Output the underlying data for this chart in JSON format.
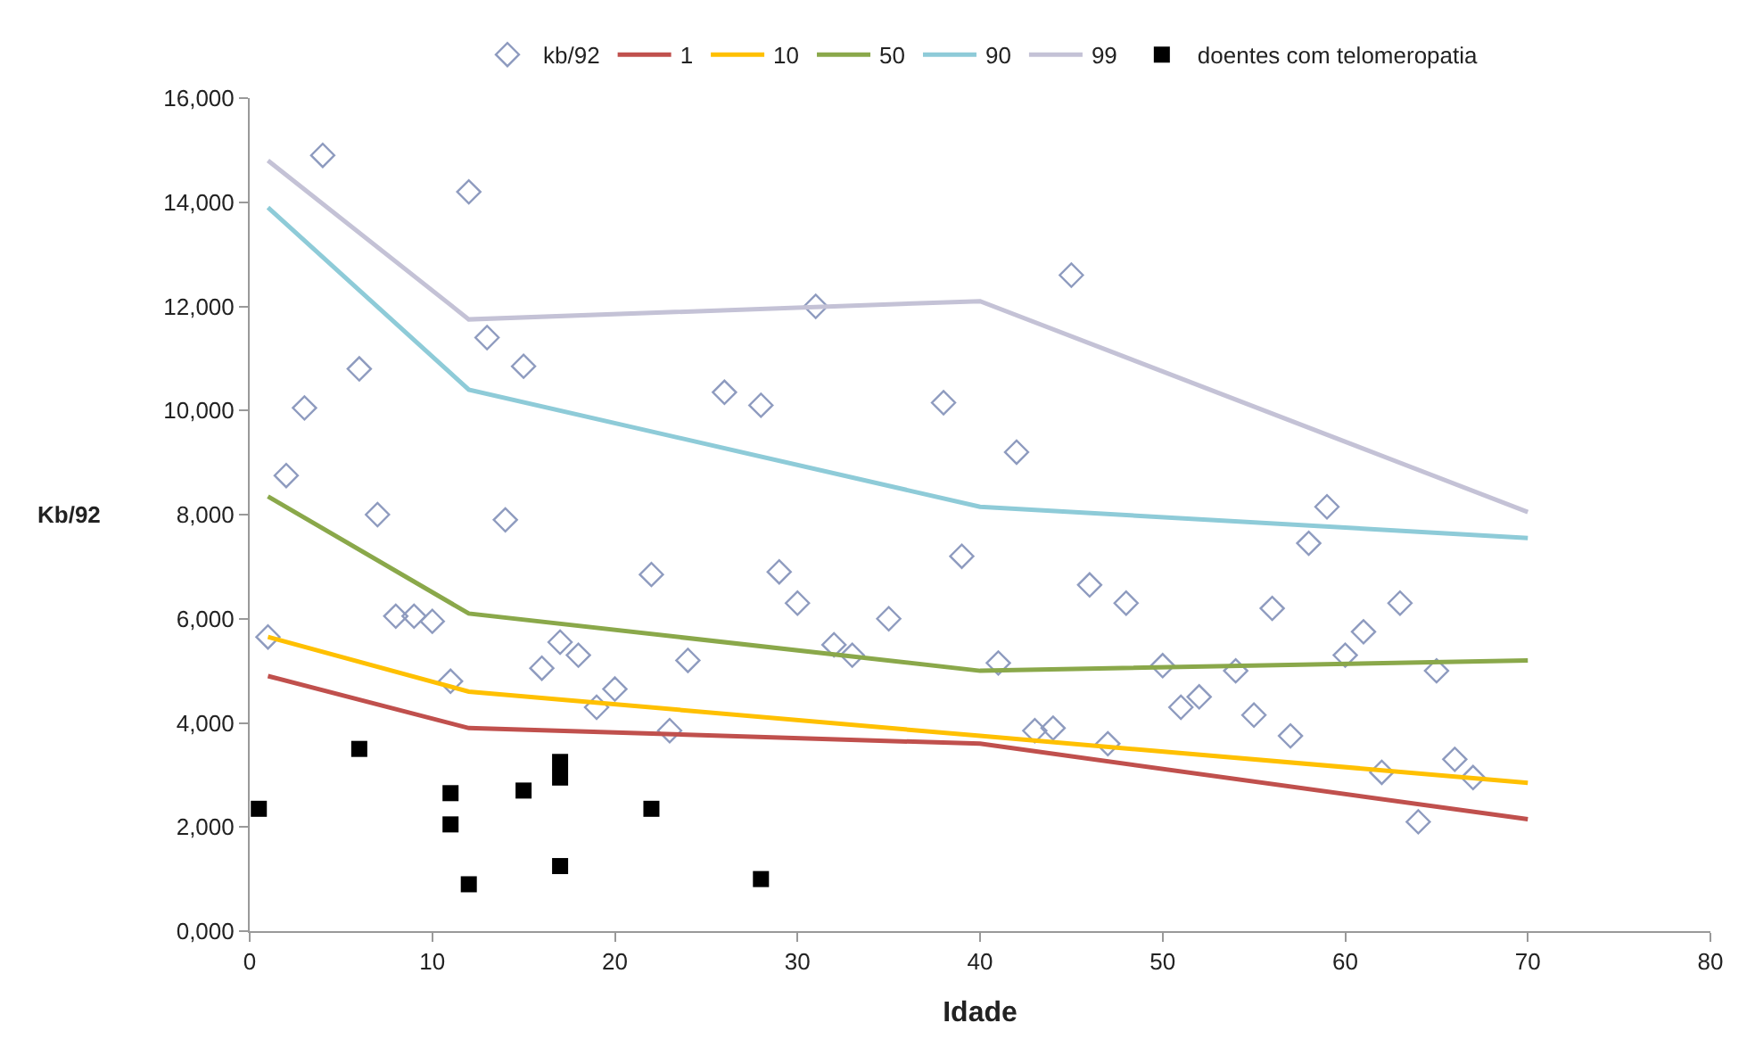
{
  "chart_data": {
    "type": "scatter",
    "xlabel": "Idade",
    "ylabel": "Kb/92",
    "xlim": [
      0,
      80
    ],
    "xticks": [
      0,
      10,
      20,
      30,
      40,
      50,
      60,
      70,
      80
    ],
    "ylim": [
      0,
      16000
    ],
    "yticks": [
      {
        "value": 0,
        "label": "0,000"
      },
      {
        "value": 2000,
        "label": "2,000"
      },
      {
        "value": 4000,
        "label": "4,000"
      },
      {
        "value": 6000,
        "label": "6,000"
      },
      {
        "value": 8000,
        "label": "8,000"
      },
      {
        "value": 10000,
        "label": "10,000"
      },
      {
        "value": 12000,
        "label": "12,000"
      },
      {
        "value": 14000,
        "label": "14,000"
      },
      {
        "value": 16000,
        "label": "16,000"
      }
    ],
    "legend": "top",
    "series": [
      {
        "name": "kb/92",
        "marker": "diamond",
        "color": "#8e9bbf",
        "x": [
          1,
          2,
          3,
          4,
          6,
          7,
          8,
          9,
          10,
          11,
          12,
          13,
          14,
          15,
          16,
          17,
          18,
          19,
          20,
          22,
          23,
          24,
          26,
          28,
          29,
          30,
          31,
          32,
          33,
          35,
          38,
          39,
          41,
          42,
          43,
          44,
          45,
          46,
          47,
          48,
          50,
          51,
          52,
          54,
          55,
          56,
          57,
          58,
          59,
          60,
          61,
          62,
          63,
          64,
          65,
          66,
          67
        ],
        "values": [
          5650,
          8750,
          10050,
          14900,
          10800,
          8000,
          6050,
          6050,
          5950,
          4800,
          14200,
          11400,
          7900,
          10850,
          5050,
          5550,
          5300,
          4300,
          4650,
          6850,
          3850,
          5200,
          10350,
          10100,
          6900,
          6300,
          12000,
          5500,
          5300,
          6000,
          10150,
          7200,
          5150,
          9200,
          3850,
          3900,
          12600,
          6650,
          3600,
          6300,
          5100,
          4300,
          4500,
          5000,
          4150,
          6200,
          3750,
          7450,
          8150,
          5300,
          5750,
          3050,
          6300,
          2100,
          5000,
          3300,
          2950
        ]
      },
      {
        "name": "1",
        "type": "line",
        "color": "#c0504d",
        "x": [
          1,
          12,
          40,
          70
        ],
        "values": [
          4900,
          3900,
          3600,
          2150
        ]
      },
      {
        "name": "10",
        "type": "line",
        "color": "#ffc000",
        "x": [
          1,
          12,
          40,
          70
        ],
        "values": [
          5650,
          4600,
          3750,
          2850
        ]
      },
      {
        "name": "50",
        "type": "line",
        "color": "#8aa84a",
        "x": [
          1,
          12,
          40,
          70
        ],
        "values": [
          8350,
          6100,
          5000,
          5200
        ]
      },
      {
        "name": "90",
        "type": "line",
        "color": "#8ecbd8",
        "x": [
          1,
          12,
          40,
          70
        ],
        "values": [
          13900,
          10400,
          8150,
          7550
        ]
      },
      {
        "name": "99",
        "type": "line",
        "color": "#c4c2d6",
        "x": [
          1,
          12,
          40,
          70
        ],
        "values": [
          14800,
          11750,
          12100,
          8050
        ]
      },
      {
        "name": "doentes com telomeropatia",
        "marker": "square",
        "color": "#000000",
        "x": [
          0.5,
          6,
          11,
          11,
          12,
          15,
          17,
          17,
          17,
          22,
          28
        ],
        "values": [
          2350,
          3500,
          2650,
          2050,
          900,
          2700,
          3250,
          2950,
          1250,
          2350,
          1000
        ]
      }
    ]
  }
}
